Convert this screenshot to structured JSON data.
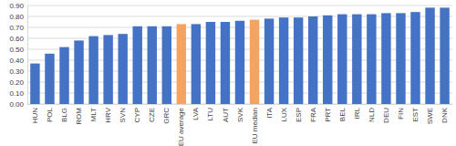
{
  "chart_data": {
    "type": "bar",
    "categories": [
      "HUN",
      "POL",
      "BLG",
      "ROM",
      "MLT",
      "HRV",
      "SVN",
      "CYP",
      "CZE",
      "GRC",
      "EU average",
      "LVA",
      "LTU",
      "AUT",
      "SVK",
      "EU median",
      "ITA",
      "LUX",
      "ESP",
      "FRA",
      "PRT",
      "BEL",
      "IRL",
      "NLD",
      "DEU",
      "FIN",
      "EST",
      "SWE",
      "DNK"
    ],
    "values": [
      0.37,
      0.46,
      0.52,
      0.58,
      0.62,
      0.63,
      0.64,
      0.71,
      0.71,
      0.71,
      0.73,
      0.73,
      0.75,
      0.75,
      0.76,
      0.77,
      0.78,
      0.79,
      0.79,
      0.8,
      0.81,
      0.82,
      0.82,
      0.82,
      0.83,
      0.83,
      0.84,
      0.88,
      0.88
    ],
    "colors": [
      "#4472c4",
      "#4472c4",
      "#4472c4",
      "#4472c4",
      "#4472c4",
      "#4472c4",
      "#4472c4",
      "#4472c4",
      "#4472c4",
      "#4472c4",
      "#f4a460",
      "#4472c4",
      "#4472c4",
      "#4472c4",
      "#4472c4",
      "#f4a460",
      "#4472c4",
      "#4472c4",
      "#4472c4",
      "#4472c4",
      "#4472c4",
      "#4472c4",
      "#4472c4",
      "#4472c4",
      "#4472c4",
      "#4472c4",
      "#4472c4",
      "#4472c4",
      "#4472c4"
    ],
    "ylim": [
      0,
      0.9
    ],
    "yticks": [
      {
        "value": 0,
        "label": "0.00"
      },
      {
        "value": 0.1,
        "label": "0.10"
      },
      {
        "value": 0.2,
        "label": "0.20"
      },
      {
        "value": 0.3,
        "label": "0.30"
      },
      {
        "value": 0.4,
        "label": "0.40"
      },
      {
        "value": 0.5,
        "label": "0.50"
      },
      {
        "value": 0.6,
        "label": "0.60"
      },
      {
        "value": 0.7,
        "label": "0.70"
      },
      {
        "value": 0.8,
        "label": "0.80"
      },
      {
        "value": 0.9,
        "label": "0.90"
      }
    ],
    "grid": true
  }
}
